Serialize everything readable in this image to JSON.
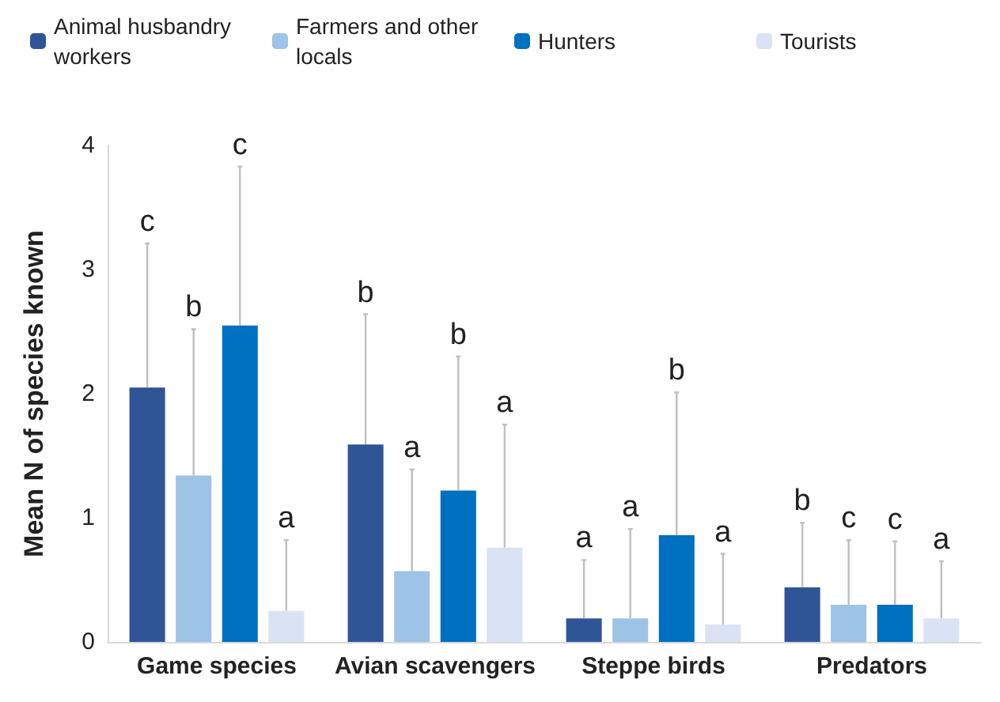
{
  "chart_data": {
    "type": "bar",
    "ylabel": "Mean N of species known",
    "categories": [
      "Game species",
      "Avian scavengers",
      "Steppe birds",
      "Predators"
    ],
    "series": [
      {
        "name": "Animal husbandry workers",
        "color": "#2f5597",
        "values": [
          2.05,
          1.59,
          0.19,
          0.44
        ],
        "errors": [
          [
            2.05,
            3.21
          ],
          [
            1.59,
            2.64
          ],
          [
            0.19,
            0.66
          ],
          [
            0.44,
            0.96
          ]
        ]
      },
      {
        "name": "Farmers and other locals",
        "color": "#9dc3e6",
        "values": [
          1.34,
          0.57,
          0.19,
          0.3
        ],
        "errors": [
          [
            1.34,
            2.52
          ],
          [
            0.57,
            1.39
          ],
          [
            0.19,
            0.91
          ],
          [
            0.3,
            0.82
          ]
        ]
      },
      {
        "name": "Hunters",
        "color": "#0070c0",
        "values": [
          2.55,
          1.22,
          0.86,
          0.3
        ],
        "errors": [
          [
            2.55,
            3.83
          ],
          [
            1.22,
            2.3
          ],
          [
            0.86,
            2.01
          ],
          [
            0.3,
            0.81
          ]
        ]
      },
      {
        "name": "Tourists",
        "color": "#dae3f3",
        "values": [
          0.25,
          0.76,
          0.14,
          0.19
        ],
        "errors": [
          [
            0.25,
            0.82
          ],
          [
            0.76,
            1.75
          ],
          [
            0.14,
            0.71
          ],
          [
            0.19,
            0.65
          ]
        ]
      }
    ],
    "annotations": [
      "c",
      "b",
      "c",
      "a",
      "b",
      "a",
      "b",
      "a",
      "a",
      "a",
      "b",
      "a",
      "b",
      "c",
      "c",
      "a"
    ],
    "ylim": [
      0,
      4
    ],
    "yticks": [
      0,
      1,
      2,
      3,
      4
    ],
    "grid": false,
    "legend": "top"
  }
}
